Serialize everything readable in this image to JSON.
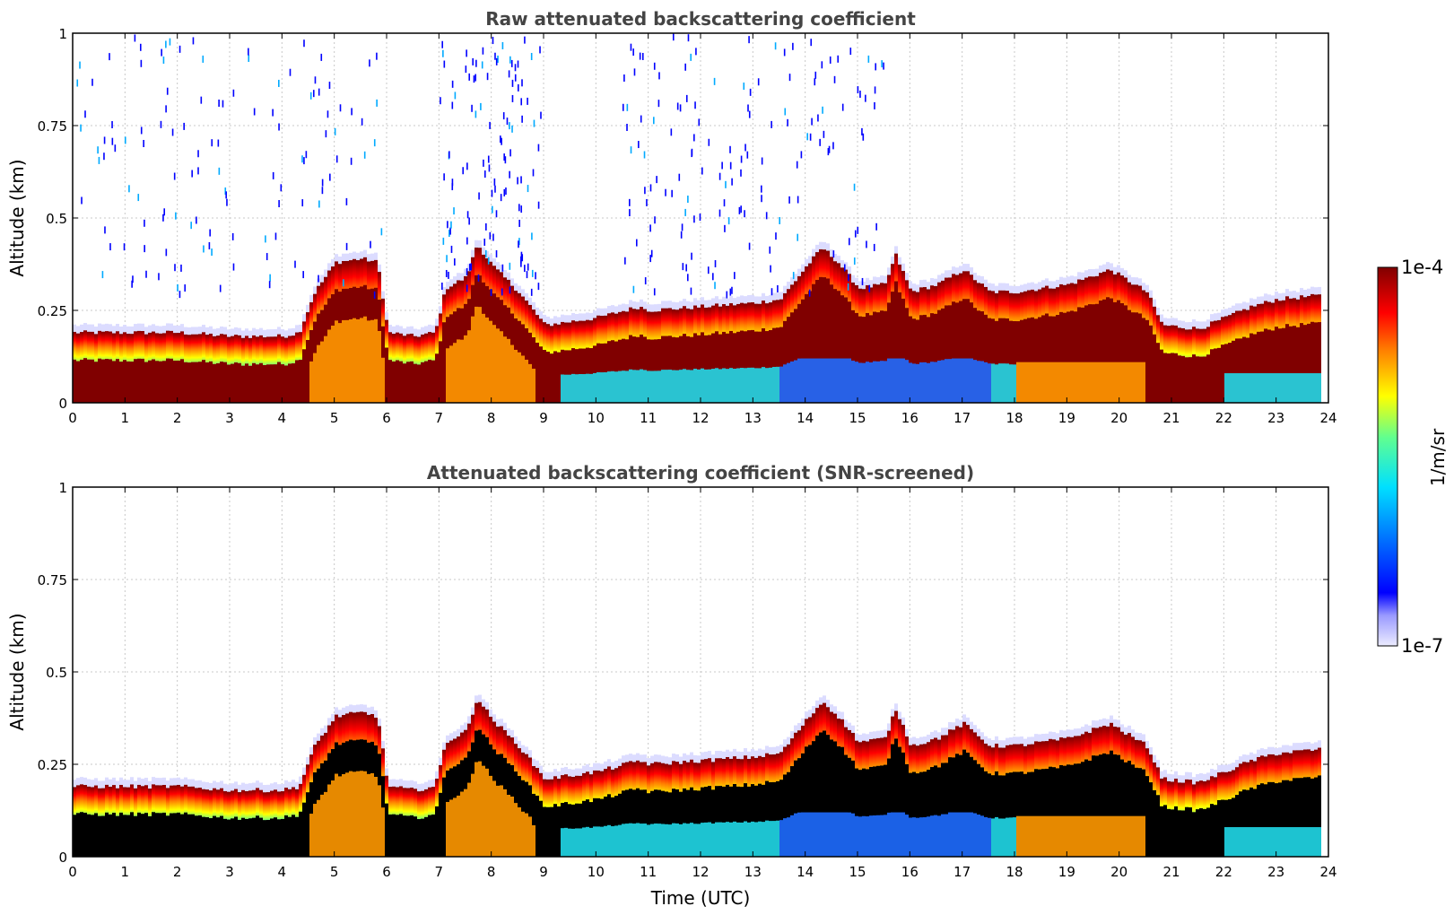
{
  "chart_data": [
    {
      "type": "heatmap",
      "title": "Raw attenuated backscattering coefficient",
      "xlabel": "",
      "ylabel": "Altitude (km)",
      "xlim": [
        0,
        24
      ],
      "ylim": [
        0,
        1
      ],
      "xticks": [
        0,
        1,
        2,
        3,
        4,
        5,
        6,
        7,
        8,
        9,
        10,
        11,
        12,
        13,
        14,
        15,
        16,
        17,
        18,
        19,
        20,
        21,
        22,
        23,
        24
      ],
      "yticks": [
        0,
        0.25,
        0.5,
        0.75,
        1
      ],
      "ytick_labels": [
        "0",
        "0.25",
        "0.5",
        "0.75",
        "1"
      ],
      "grid": true,
      "screened": false,
      "layer_top_km": {
        "time_utc": [
          0,
          1,
          2,
          3,
          4,
          4.3,
          4.6,
          5,
          5.5,
          5.8,
          6,
          6.5,
          6.9,
          7.1,
          7.5,
          7.7,
          8,
          8.5,
          9,
          10,
          10.8,
          11,
          12,
          13,
          13.5,
          14,
          14.3,
          14.6,
          15,
          15.5,
          15.7,
          16,
          16.5,
          17,
          17.5,
          18,
          19,
          19.8,
          20.5,
          20.8,
          21.5,
          22.5,
          23,
          23.8
        ],
        "top": [
          0.19,
          0.19,
          0.19,
          0.18,
          0.18,
          0.19,
          0.3,
          0.38,
          0.39,
          0.38,
          0.19,
          0.18,
          0.19,
          0.31,
          0.34,
          0.43,
          0.37,
          0.3,
          0.21,
          0.23,
          0.26,
          0.25,
          0.26,
          0.27,
          0.28,
          0.37,
          0.42,
          0.38,
          0.31,
          0.32,
          0.4,
          0.3,
          0.32,
          0.36,
          0.3,
          0.3,
          0.32,
          0.36,
          0.3,
          0.21,
          0.2,
          0.26,
          0.28,
          0.29
        ]
      },
      "colorbar": {
        "label": "1/m/sr",
        "min_label": "1e-7",
        "max_label": "1e-4",
        "scale": "log",
        "colormap": "jet"
      }
    },
    {
      "type": "heatmap",
      "title": "Attenuated backscattering coefficient (SNR-screened)",
      "xlabel": "Time (UTC)",
      "ylabel": "Altitude (km)",
      "xlim": [
        0,
        24
      ],
      "ylim": [
        0,
        1
      ],
      "xticks": [
        0,
        1,
        2,
        3,
        4,
        5,
        6,
        7,
        8,
        9,
        10,
        11,
        12,
        13,
        14,
        15,
        16,
        17,
        18,
        19,
        20,
        21,
        22,
        23,
        24
      ],
      "yticks": [
        0,
        0.25,
        0.5,
        0.75,
        1
      ],
      "ytick_labels": [
        "0",
        "0.25",
        "0.5",
        "0.75",
        "1"
      ],
      "grid": true,
      "screened": true,
      "saturated_color": "#000000",
      "layer_top_km": {
        "time_utc": [
          0,
          1,
          2,
          3,
          4,
          4.3,
          4.6,
          5,
          5.5,
          5.8,
          6,
          6.5,
          6.9,
          7.1,
          7.5,
          7.7,
          8,
          8.5,
          9,
          10,
          10.8,
          11,
          12,
          13,
          13.5,
          14,
          14.3,
          14.6,
          15,
          15.5,
          15.7,
          16,
          16.5,
          17,
          17.5,
          18,
          19,
          19.8,
          20.5,
          20.8,
          21.5,
          22.5,
          23,
          23.8
        ],
        "top": [
          0.19,
          0.19,
          0.19,
          0.18,
          0.18,
          0.19,
          0.3,
          0.38,
          0.39,
          0.38,
          0.19,
          0.18,
          0.19,
          0.31,
          0.34,
          0.43,
          0.37,
          0.3,
          0.21,
          0.23,
          0.26,
          0.25,
          0.26,
          0.27,
          0.28,
          0.37,
          0.42,
          0.38,
          0.31,
          0.32,
          0.4,
          0.3,
          0.32,
          0.36,
          0.3,
          0.3,
          0.32,
          0.36,
          0.3,
          0.21,
          0.2,
          0.26,
          0.28,
          0.29
        ]
      },
      "colorbar": {
        "label": "1/m/sr",
        "min_label": "1e-7",
        "max_label": "1e-4",
        "scale": "log",
        "colormap": "jet"
      }
    }
  ],
  "colors": {
    "title": "#444444",
    "axis": "#000000",
    "grid": "#c8c8c8",
    "saturated": "#800000",
    "screened_saturated": "#000000"
  }
}
